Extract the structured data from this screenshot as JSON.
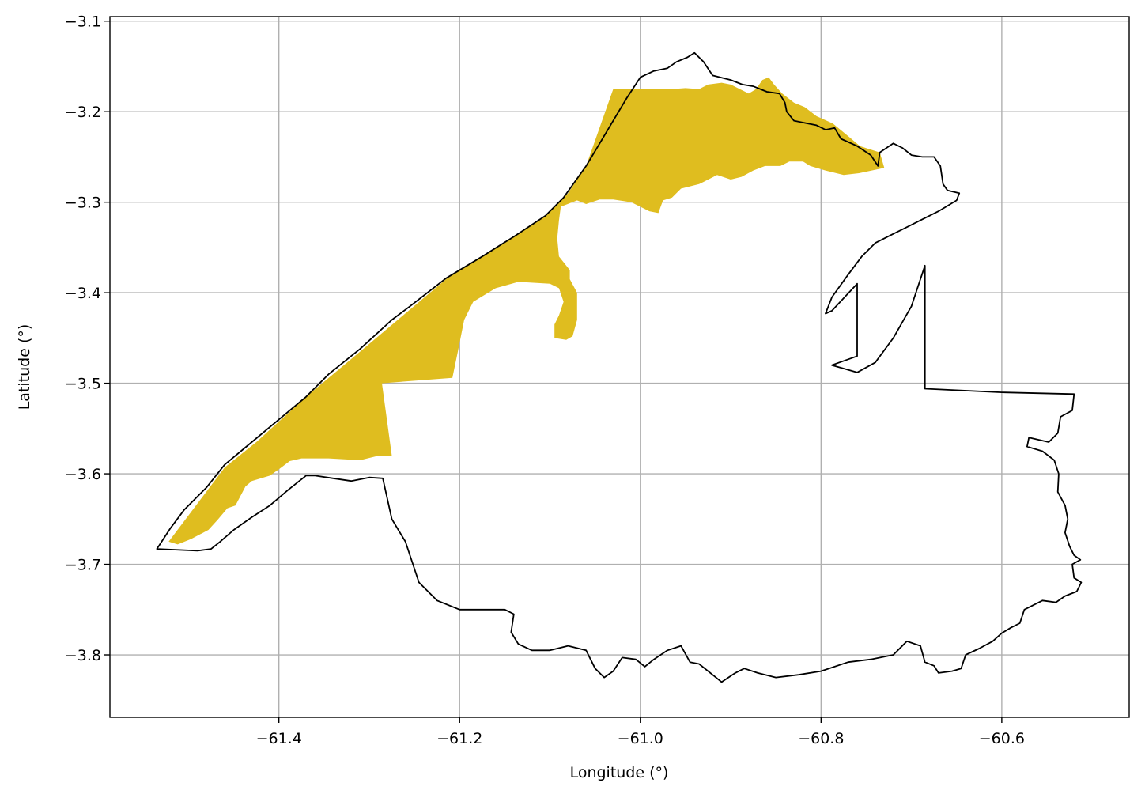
{
  "chart_data": {
    "type": "map",
    "title": "",
    "xlabel": "Longitude (°)",
    "ylabel": "Latitude (°)",
    "xlim": [
      -61.587,
      -60.459
    ],
    "ylim": [
      -3.869,
      -3.095
    ],
    "x_ticks": [
      -61.4,
      -61.2,
      -61.0,
      -60.8,
      -60.6
    ],
    "y_ticks": [
      -3.1,
      -3.2,
      -3.3,
      -3.4,
      -3.5,
      -3.6,
      -3.7,
      -3.8
    ],
    "x_tick_labels": [
      "−61.4",
      "−61.2",
      "−61.0",
      "−60.8",
      "−60.6"
    ],
    "y_tick_labels": [
      "−3.1",
      "−3.2",
      "−3.3",
      "−3.4",
      "−3.5",
      "−3.6",
      "−3.7",
      "−3.8"
    ],
    "grid": true,
    "fill_color": "#dfbd1f",
    "outline_color": "#000000",
    "filled_region": [
      [
        -61.522,
        -3.675
      ],
      [
        -61.512,
        -3.678
      ],
      [
        -61.497,
        -3.672
      ],
      [
        -61.478,
        -3.662
      ],
      [
        -61.468,
        -3.651
      ],
      [
        -61.457,
        -3.638
      ],
      [
        -61.448,
        -3.635
      ],
      [
        -61.437,
        -3.614
      ],
      [
        -61.43,
        -3.608
      ],
      [
        -61.41,
        -3.602
      ],
      [
        -61.4,
        -3.595
      ],
      [
        -61.388,
        -3.586
      ],
      [
        -61.375,
        -3.583
      ],
      [
        -61.345,
        -3.583
      ],
      [
        -61.31,
        -3.585
      ],
      [
        -61.29,
        -3.58
      ],
      [
        -61.275,
        -3.58
      ],
      [
        -61.286,
        -3.5
      ],
      [
        -61.208,
        -3.494
      ],
      [
        -61.202,
        -3.465
      ],
      [
        -61.195,
        -3.43
      ],
      [
        -61.185,
        -3.41
      ],
      [
        -61.16,
        -3.395
      ],
      [
        -61.135,
        -3.388
      ],
      [
        -61.1,
        -3.39
      ],
      [
        -61.09,
        -3.395
      ],
      [
        -61.085,
        -3.41
      ],
      [
        -61.09,
        -3.425
      ],
      [
        -61.095,
        -3.435
      ],
      [
        -61.095,
        -3.45
      ],
      [
        -61.082,
        -3.452
      ],
      [
        -61.075,
        -3.448
      ],
      [
        -61.07,
        -3.43
      ],
      [
        -61.07,
        -3.4
      ],
      [
        -61.078,
        -3.385
      ],
      [
        -61.078,
        -3.375
      ],
      [
        -61.09,
        -3.36
      ],
      [
        -61.092,
        -3.34
      ],
      [
        -61.09,
        -3.32
      ],
      [
        -61.088,
        -3.305
      ],
      [
        -61.07,
        -3.298
      ],
      [
        -61.06,
        -3.302
      ],
      [
        -61.045,
        -3.297
      ],
      [
        -61.03,
        -3.297
      ],
      [
        -61.01,
        -3.3
      ],
      [
        -60.99,
        -3.31
      ],
      [
        -60.98,
        -3.312
      ],
      [
        -60.975,
        -3.298
      ],
      [
        -60.965,
        -3.295
      ],
      [
        -60.955,
        -3.285
      ],
      [
        -60.935,
        -3.28
      ],
      [
        -60.915,
        -3.27
      ],
      [
        -60.9,
        -3.275
      ],
      [
        -60.888,
        -3.272
      ],
      [
        -60.875,
        -3.265
      ],
      [
        -60.862,
        -3.26
      ],
      [
        -60.845,
        -3.26
      ],
      [
        -60.835,
        -3.255
      ],
      [
        -60.82,
        -3.255
      ],
      [
        -60.812,
        -3.26
      ],
      [
        -60.795,
        -3.265
      ],
      [
        -60.775,
        -3.27
      ],
      [
        -60.758,
        -3.268
      ],
      [
        -60.73,
        -3.262
      ],
      [
        -60.735,
        -3.245
      ],
      [
        -60.757,
        -3.238
      ],
      [
        -60.77,
        -3.227
      ],
      [
        -60.787,
        -3.213
      ],
      [
        -60.805,
        -3.205
      ],
      [
        -60.818,
        -3.195
      ],
      [
        -60.83,
        -3.19
      ],
      [
        -60.843,
        -3.18
      ],
      [
        -60.852,
        -3.17
      ],
      [
        -60.858,
        -3.162
      ],
      [
        -60.865,
        -3.165
      ],
      [
        -60.872,
        -3.175
      ],
      [
        -60.88,
        -3.18
      ],
      [
        -60.89,
        -3.175
      ],
      [
        -60.9,
        -3.17
      ],
      [
        -60.91,
        -3.168
      ],
      [
        -60.925,
        -3.17
      ],
      [
        -60.935,
        -3.175
      ],
      [
        -60.95,
        -3.174
      ],
      [
        -60.965,
        -3.175
      ],
      [
        -60.985,
        -3.175
      ],
      [
        -61.012,
        -3.175
      ],
      [
        -61.12,
        -3.175
      ],
      [
        -61.02,
        -3.175
      ],
      [
        -61.03,
        -3.175
      ],
      [
        -61.06,
        -3.26
      ],
      [
        -61.08,
        -3.29
      ],
      [
        -61.105,
        -3.315
      ],
      [
        -61.215,
        -3.385
      ],
      [
        -61.31,
        -3.465
      ],
      [
        -61.37,
        -3.515
      ],
      [
        -61.425,
        -3.565
      ],
      [
        -61.46,
        -3.593
      ]
    ],
    "boundary_outline": [
      [
        -61.535,
        -3.683
      ],
      [
        -61.52,
        -3.66
      ],
      [
        -61.505,
        -3.64
      ],
      [
        -61.48,
        -3.615
      ],
      [
        -61.46,
        -3.59
      ],
      [
        -61.43,
        -3.565
      ],
      [
        -61.4,
        -3.54
      ],
      [
        -61.37,
        -3.515
      ],
      [
        -61.345,
        -3.49
      ],
      [
        -61.31,
        -3.462
      ],
      [
        -61.275,
        -3.43
      ],
      [
        -61.255,
        -3.415
      ],
      [
        -61.215,
        -3.384
      ],
      [
        -61.175,
        -3.36
      ],
      [
        -61.14,
        -3.338
      ],
      [
        -61.105,
        -3.315
      ],
      [
        -61.085,
        -3.295
      ],
      [
        -61.06,
        -3.26
      ],
      [
        -61.045,
        -3.235
      ],
      [
        -61.03,
        -3.21
      ],
      [
        -61.015,
        -3.185
      ],
      [
        -61.0,
        -3.162
      ],
      [
        -60.985,
        -3.155
      ],
      [
        -60.97,
        -3.152
      ],
      [
        -60.96,
        -3.145
      ],
      [
        -60.948,
        -3.14
      ],
      [
        -60.94,
        -3.135
      ],
      [
        -60.93,
        -3.145
      ],
      [
        -60.92,
        -3.16
      ],
      [
        -60.9,
        -3.165
      ],
      [
        -60.887,
        -3.17
      ],
      [
        -60.875,
        -3.172
      ],
      [
        -60.86,
        -3.178
      ],
      [
        -60.846,
        -3.18
      ],
      [
        -60.84,
        -3.19
      ],
      [
        -60.838,
        -3.2
      ],
      [
        -60.83,
        -3.21
      ],
      [
        -60.805,
        -3.215
      ],
      [
        -60.795,
        -3.22
      ],
      [
        -60.785,
        -3.218
      ],
      [
        -60.778,
        -3.23
      ],
      [
        -60.76,
        -3.238
      ],
      [
        -60.745,
        -3.248
      ],
      [
        -60.737,
        -3.26
      ],
      [
        -60.735,
        -3.245
      ],
      [
        -60.72,
        -3.235
      ],
      [
        -60.71,
        -3.24
      ],
      [
        -60.7,
        -3.248
      ],
      [
        -60.688,
        -3.25
      ],
      [
        -60.675,
        -3.25
      ],
      [
        -60.668,
        -3.26
      ],
      [
        -60.665,
        -3.28
      ],
      [
        -60.66,
        -3.287
      ],
      [
        -60.647,
        -3.29
      ],
      [
        -60.65,
        -3.298
      ],
      [
        -60.67,
        -3.31
      ],
      [
        -60.69,
        -3.32
      ],
      [
        -60.72,
        -3.335
      ],
      [
        -60.74,
        -3.345
      ],
      [
        -60.755,
        -3.36
      ],
      [
        -60.77,
        -3.38
      ],
      [
        -60.788,
        -3.405
      ],
      [
        -60.795,
        -3.423
      ],
      [
        -60.788,
        -3.42
      ],
      [
        -60.76,
        -3.39
      ],
      [
        -60.76,
        -3.47
      ],
      [
        -60.788,
        -3.48
      ],
      [
        -60.76,
        -3.488
      ],
      [
        -60.74,
        -3.477
      ],
      [
        -60.72,
        -3.45
      ],
      [
        -60.7,
        -3.415
      ],
      [
        -60.685,
        -3.37
      ],
      [
        -60.685,
        -3.506
      ],
      [
        -60.6,
        -3.51
      ],
      [
        -60.52,
        -3.512
      ],
      [
        -60.522,
        -3.53
      ],
      [
        -60.535,
        -3.537
      ],
      [
        -60.538,
        -3.555
      ],
      [
        -60.548,
        -3.565
      ],
      [
        -60.57,
        -3.56
      ],
      [
        -60.572,
        -3.57
      ],
      [
        -60.555,
        -3.575
      ],
      [
        -60.542,
        -3.585
      ],
      [
        -60.537,
        -3.6
      ],
      [
        -60.538,
        -3.62
      ],
      [
        -60.53,
        -3.635
      ],
      [
        -60.527,
        -3.65
      ],
      [
        -60.53,
        -3.665
      ],
      [
        -60.525,
        -3.68
      ],
      [
        -60.52,
        -3.69
      ],
      [
        -60.513,
        -3.695
      ],
      [
        -60.522,
        -3.7
      ],
      [
        -60.52,
        -3.715
      ],
      [
        -60.512,
        -3.72
      ],
      [
        -60.517,
        -3.73
      ],
      [
        -60.53,
        -3.735
      ],
      [
        -60.54,
        -3.742
      ],
      [
        -60.555,
        -3.74
      ],
      [
        -60.565,
        -3.745
      ],
      [
        -60.575,
        -3.75
      ],
      [
        -60.58,
        -3.765
      ],
      [
        -60.59,
        -3.77
      ],
      [
        -60.6,
        -3.776
      ],
      [
        -60.61,
        -3.785
      ],
      [
        -60.625,
        -3.793
      ],
      [
        -60.64,
        -3.8
      ],
      [
        -60.645,
        -3.815
      ],
      [
        -60.655,
        -3.818
      ],
      [
        -60.67,
        -3.82
      ],
      [
        -60.675,
        -3.812
      ],
      [
        -60.685,
        -3.808
      ],
      [
        -60.69,
        -3.79
      ],
      [
        -60.705,
        -3.785
      ],
      [
        -60.72,
        -3.8
      ],
      [
        -60.745,
        -3.805
      ],
      [
        -60.77,
        -3.808
      ],
      [
        -60.8,
        -3.818
      ],
      [
        -60.825,
        -3.822
      ],
      [
        -60.85,
        -3.825
      ],
      [
        -60.87,
        -3.82
      ],
      [
        -60.885,
        -3.815
      ],
      [
        -60.895,
        -3.82
      ],
      [
        -60.91,
        -3.83
      ],
      [
        -60.92,
        -3.822
      ],
      [
        -60.935,
        -3.81
      ],
      [
        -60.945,
        -3.808
      ],
      [
        -60.955,
        -3.79
      ],
      [
        -60.97,
        -3.795
      ],
      [
        -60.985,
        -3.805
      ],
      [
        -60.995,
        -3.813
      ],
      [
        -61.005,
        -3.805
      ],
      [
        -61.02,
        -3.803
      ],
      [
        -61.03,
        -3.818
      ],
      [
        -61.04,
        -3.825
      ],
      [
        -61.05,
        -3.815
      ],
      [
        -61.06,
        -3.795
      ],
      [
        -61.08,
        -3.79
      ],
      [
        -61.1,
        -3.795
      ],
      [
        -61.12,
        -3.795
      ],
      [
        -61.135,
        -3.788
      ],
      [
        -61.143,
        -3.775
      ],
      [
        -61.14,
        -3.755
      ],
      [
        -61.15,
        -3.75
      ],
      [
        -61.2,
        -3.75
      ],
      [
        -61.225,
        -3.74
      ],
      [
        -61.245,
        -3.72
      ],
      [
        -61.26,
        -3.675
      ],
      [
        -61.275,
        -3.65
      ],
      [
        -61.285,
        -3.605
      ],
      [
        -61.3,
        -3.604
      ],
      [
        -61.32,
        -3.608
      ],
      [
        -61.34,
        -3.605
      ],
      [
        -61.36,
        -3.602
      ],
      [
        -61.37,
        -3.602
      ],
      [
        -61.39,
        -3.618
      ],
      [
        -61.41,
        -3.635
      ],
      [
        -61.43,
        -3.648
      ],
      [
        -61.45,
        -3.662
      ],
      [
        -61.465,
        -3.675
      ],
      [
        -61.475,
        -3.683
      ],
      [
        -61.49,
        -3.685
      ]
    ]
  }
}
